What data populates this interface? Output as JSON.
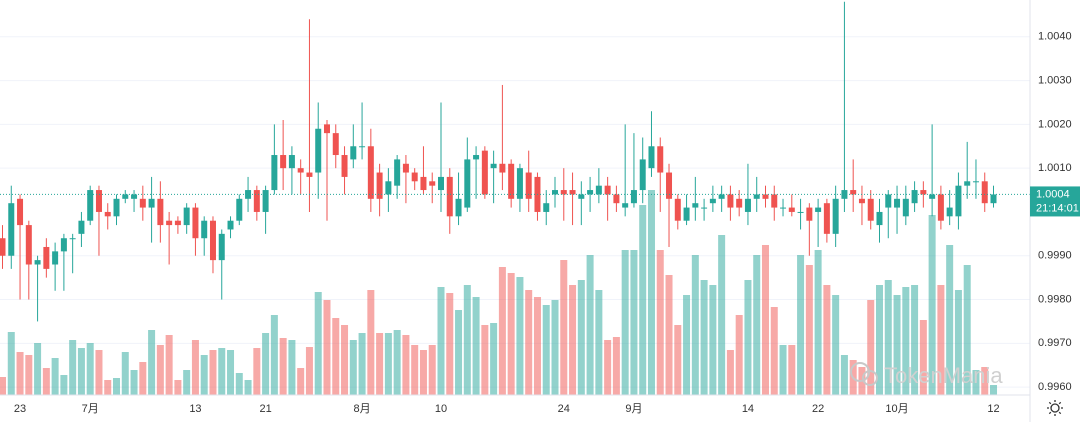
{
  "chart_data": {
    "type": "candlestick",
    "categories": [
      null,
      null,
      "23",
      null,
      null,
      null,
      null,
      null,
      null,
      null,
      "7月",
      null,
      null,
      null,
      null,
      null,
      null,
      null,
      null,
      null,
      null,
      null,
      "13",
      null,
      null,
      null,
      null,
      null,
      null,
      null,
      "21",
      null,
      null,
      null,
      null,
      null,
      null,
      null,
      null,
      null,
      null,
      "8月",
      null,
      null,
      null,
      null,
      null,
      null,
      null,
      null,
      "10",
      null,
      null,
      null,
      null,
      null,
      null,
      null,
      null,
      null,
      null,
      null,
      null,
      null,
      "24",
      null,
      null,
      null,
      null,
      null,
      null,
      null,
      "9月",
      null,
      null,
      null,
      null,
      null,
      null,
      null,
      null,
      null,
      null,
      null,
      null,
      "14",
      null,
      null,
      null,
      null,
      null,
      null,
      null,
      "22",
      null,
      null,
      null,
      null,
      null,
      null,
      null,
      null,
      "10月",
      null,
      null,
      null,
      null,
      null,
      null,
      null,
      null,
      null,
      null,
      "12"
    ],
    "open": [
      0.9994,
      0.999,
      1.0003,
      0.9997,
      0.9988,
      0.9992,
      0.9988,
      0.9991,
      0.9994,
      0.9995,
      0.9998,
      1.0005,
      1.0,
      0.9999,
      1.0003,
      1.0003,
      1.0003,
      1.0001,
      1.0003,
      0.9998,
      0.9998,
      0.9997,
      1.0001,
      0.9994,
      0.9998,
      0.9989,
      0.9996,
      0.9998,
      1.0003,
      1.0005,
      1.0,
      1.0005,
      1.0013,
      1.001,
      1.001,
      1.0009,
      1.0009,
      1.002,
      1.0018,
      1.0013,
      1.0012,
      1.0015,
      1.0015,
      1.0009,
      1.0004,
      1.0006,
      1.0011,
      1.0009,
      1.0008,
      1.0007,
      1.0005,
      1.0008,
      0.9999,
      1.0001,
      1.0012,
      1.0014,
      1.001,
      1.0011,
      1.0011,
      1.0003,
      1.0009,
      1.0008,
      1.0,
      1.0004,
      1.0005,
      1.0005,
      1.0003,
      1.0004,
      1.0004,
      1.0006,
      1.0004,
      1.0001,
      1.0002,
      1.0005,
      1.001,
      1.0015,
      1.0009,
      1.0003,
      0.9998,
      1.0001,
      1.0001,
      1.0002,
      1.0003,
      1.0004,
      1.0003,
      1.0,
      1.0003,
      1.0004,
      1.0004,
      1.0001,
      1.0001,
      1.0,
      1.0001,
      1.0,
      1.0002,
      0.9995,
      1.0003,
      1.0005,
      1.0003,
      1.0003,
      0.9997,
      1.0001,
      1.0001,
      0.9999,
      1.0002,
      1.0005,
      1.0003,
      1.0004,
      0.9999,
      0.9999,
      1.0006,
      1.0007,
      1.0007,
      1.0002
    ],
    "high": [
      0.9997,
      1.0006,
      1.0004,
      0.9998,
      0.999,
      0.9994,
      0.9993,
      0.9995,
      0.9995,
      1.0,
      1.0006,
      1.0006,
      1.0002,
      1.0004,
      1.0005,
      1.0005,
      1.0006,
      1.0008,
      1.0007,
      1.0,
      0.9999,
      1.0002,
      1.0002,
      0.9999,
      0.9999,
      0.9996,
      0.9999,
      1.0004,
      1.0008,
      1.0006,
      1.0006,
      1.002,
      1.0021,
      1.0015,
      1.0012,
      1.0044,
      1.0025,
      1.0021,
      1.002,
      1.0015,
      1.002,
      1.0025,
      1.0019,
      1.0011,
      1.001,
      1.0013,
      1.0013,
      1.001,
      1.0015,
      1.0009,
      1.0025,
      1.001,
      1.0009,
      1.0017,
      1.0015,
      1.0015,
      1.0014,
      1.0029,
      1.0012,
      1.0011,
      1.0014,
      1.0009,
      1.0005,
      1.0008,
      1.001,
      1.0009,
      1.0007,
      1.0008,
      1.001,
      1.0008,
      1.0006,
      1.002,
      1.0018,
      1.0017,
      1.0023,
      1.0017,
      1.0011,
      1.0004,
      1.0004,
      1.0008,
      1.0003,
      1.0006,
      1.0006,
      1.0006,
      1.0005,
      1.0011,
      1.0008,
      1.0006,
      1.0006,
      1.0003,
      1.0004,
      1.0003,
      1.0002,
      1.0003,
      1.0003,
      1.0006,
      1.0048,
      1.0012,
      1.0006,
      1.0005,
      1.0003,
      1.0005,
      1.0006,
      1.0006,
      1.0007,
      1.0007,
      1.002,
      1.0006,
      1.0005,
      1.0009,
      1.0016,
      1.0012,
      1.0009,
      1.0006
    ],
    "low": [
      0.9987,
      0.9987,
      0.998,
      0.998,
      0.9975,
      0.9985,
      0.9982,
      0.9982,
      0.9986,
      0.9992,
      0.9997,
      0.999,
      0.9996,
      0.9997,
      1.0002,
      1.0,
      0.9998,
      0.9993,
      0.9993,
      0.9988,
      0.9995,
      0.9995,
      0.999,
      0.999,
      0.9986,
      0.998,
      0.9994,
      0.9997,
      1.0,
      0.9998,
      0.9995,
      1.0004,
      1.0005,
      1.0004,
      1.0004,
      1.0,
      1.0003,
      0.9998,
      1.001,
      1.0004,
      1.001,
      1.0012,
      1.0,
      0.9999,
      1.0,
      1.0003,
      1.0002,
      1.0005,
      1.0004,
      1.0002,
      1.0,
      0.9995,
      0.9997,
      1.0,
      1.0003,
      1.0003,
      1.0002,
      1.0005,
      1.0001,
      1.0,
      1.0,
      0.9998,
      0.9997,
      1.0001,
      0.9998,
      0.9997,
      0.9997,
      1.0,
      1.0002,
      0.9998,
      1.0,
      0.9999,
      1.0001,
      1.0002,
      1.0008,
      1.0,
      0.9992,
      0.9996,
      0.9997,
      0.9998,
      0.9998,
      1.0,
      1.0,
      0.9998,
      0.9999,
      0.9997,
      1.0,
      1.0001,
      0.9998,
      0.9999,
      0.9999,
      0.9996,
      0.999,
      0.9992,
      0.9993,
      0.9992,
      1.0,
      1.0,
      0.9997,
      0.9996,
      0.9993,
      0.9994,
      0.9995,
      0.9997,
      1.0,
      1.0001,
      0.9999,
      0.9996,
      0.9997,
      0.9996,
      1.0003,
      1.0003,
      1.0,
      1.0001
    ],
    "close": [
      0.999,
      1.0002,
      0.9997,
      0.9988,
      0.9989,
      0.9987,
      0.9991,
      0.9994,
      0.9994,
      0.9998,
      1.0005,
      1.0,
      0.9999,
      1.0003,
      1.0004,
      1.0004,
      1.0001,
      1.0003,
      0.9997,
      0.9997,
      0.9997,
      1.0001,
      0.9994,
      0.9998,
      0.9989,
      0.9995,
      0.9998,
      1.0003,
      1.0005,
      1.0,
      1.0005,
      1.0013,
      1.001,
      1.0013,
      1.0009,
      1.0008,
      1.0019,
      1.0018,
      1.0013,
      1.0008,
      1.0015,
      1.0015,
      1.0003,
      1.0003,
      1.0007,
      1.0012,
      1.0009,
      1.0007,
      1.0005,
      1.0006,
      1.0008,
      0.9999,
      1.0003,
      1.0012,
      1.0013,
      1.0004,
      1.0011,
      1.0009,
      1.0003,
      1.001,
      1.0003,
      1.0,
      1.0002,
      1.0005,
      1.0004,
      1.0004,
      1.0004,
      1.0005,
      1.0006,
      1.0004,
      1.0002,
      1.0002,
      1.0005,
      1.0012,
      1.0015,
      1.0009,
      1.0003,
      0.9998,
      1.0001,
      1.0002,
      1.0001,
      1.0003,
      1.0004,
      1.0001,
      1.0001,
      1.0003,
      1.0004,
      1.0003,
      1.0001,
      1.0001,
      1.0,
      1.0,
      0.9998,
      1.0001,
      0.9995,
      1.0003,
      1.0005,
      1.0004,
      1.0002,
      0.9998,
      1.0,
      1.0004,
      1.0003,
      1.0003,
      1.0005,
      1.0004,
      1.0004,
      0.9998,
      1.0001,
      1.0006,
      1.0007,
      1.0007,
      1.0002,
      1.0004
    ],
    "volume": [
      18,
      63,
      43,
      40,
      52,
      27,
      37,
      20,
      55,
      47,
      52,
      45,
      15,
      17,
      43,
      25,
      33,
      65,
      50,
      60,
      15,
      25,
      55,
      40,
      45,
      47,
      45,
      22,
      15,
      47,
      62,
      80,
      57,
      55,
      27,
      48,
      103,
      95,
      77,
      70,
      55,
      62,
      105,
      62,
      62,
      65,
      60,
      50,
      45,
      50,
      108,
      102,
      85,
      110,
      98,
      70,
      72,
      128,
      122,
      118,
      105,
      98,
      90,
      95,
      135,
      110,
      115,
      140,
      105,
      55,
      58,
      145,
      145,
      190,
      205,
      145,
      120,
      70,
      100,
      140,
      115,
      110,
      160,
      45,
      80,
      115,
      140,
      150,
      88,
      50,
      50,
      140,
      130,
      145,
      110,
      100,
      40,
      35,
      28,
      95,
      110,
      115,
      100,
      108,
      110,
      75,
      180,
      110,
      150,
      105,
      130,
      25,
      28,
      10
    ],
    "up_color": "#26a69a",
    "down_color": "#ef5350",
    "ylim": [
      0.99582,
      1.00484
    ],
    "yticks": [
      {
        "value": 0.996,
        "label": "0.9960"
      },
      {
        "value": 0.997,
        "label": "0.9970"
      },
      {
        "value": 0.998,
        "label": "0.9980"
      },
      {
        "value": 0.999,
        "label": "0.9990"
      },
      {
        "value": 1.001,
        "label": "1.0010"
      },
      {
        "value": 1.002,
        "label": "1.0020"
      },
      {
        "value": 1.003,
        "label": "1.0030"
      },
      {
        "value": 1.004,
        "label": "1.0040"
      }
    ],
    "grid": true,
    "last_price": 1.0004,
    "countdown": "21:14:01",
    "watermark": "TokenMania"
  }
}
